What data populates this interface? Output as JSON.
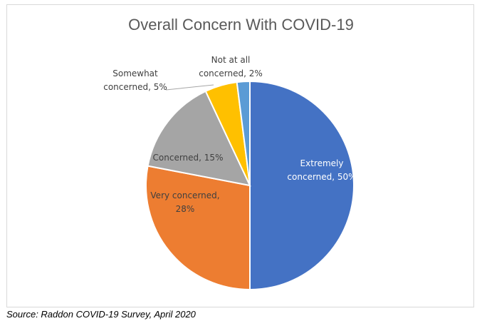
{
  "chart_data": {
    "type": "pie",
    "title": "Overall Concern With COVID-19",
    "categories": [
      "Extremely concerned",
      "Very concerned",
      "Concerned",
      "Somewhat concerned",
      "Not at all concerned"
    ],
    "values": [
      50,
      28,
      15,
      5,
      2
    ],
    "unit": "%",
    "colors": [
      "#4472c4",
      "#ed7d31",
      "#a5a5a5",
      "#ffc000",
      "#5b9bd5"
    ],
    "data_labels": [
      [
        "Extremely",
        "concerned, 50%"
      ],
      [
        "Very concerned,",
        "28%"
      ],
      [
        "Concerned, 15%"
      ],
      [
        "Somewhat",
        "concerned, 5%"
      ],
      [
        "Not at all",
        "concerned, 2%"
      ]
    ],
    "legend": "none"
  },
  "source": "Source: Raddon COVID-19 Survey, April 2020"
}
